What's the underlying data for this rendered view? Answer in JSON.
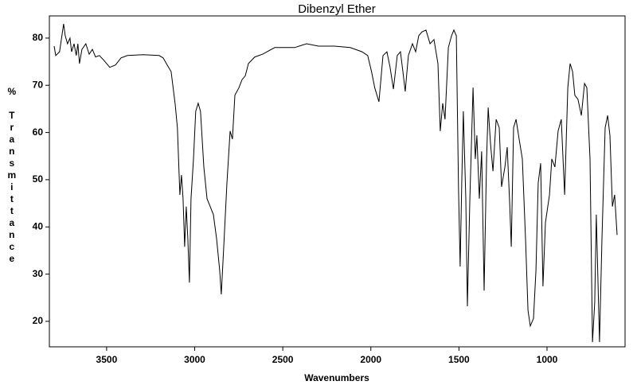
{
  "chart_data": {
    "type": "line",
    "title": "Dibenzyl Ether",
    "x_label": "Wavenumbers",
    "y_label": "% Transmittance",
    "xlim": [
      3825,
      557
    ],
    "ylim": [
      14.6,
      84.7
    ],
    "xticks": [
      3500,
      3000,
      2500,
      2000,
      1500,
      1000
    ],
    "yticks": [
      20,
      30,
      40,
      50,
      60,
      70,
      80
    ],
    "x": [
      3798,
      3789,
      3767,
      3744,
      3735,
      3722,
      3708,
      3699,
      3685,
      3672,
      3663,
      3654,
      3640,
      3618,
      3599,
      3581,
      3563,
      3541,
      3518,
      3482,
      3450,
      3418,
      3382,
      3292,
      3202,
      3179,
      3156,
      3134,
      3111,
      3098,
      3084,
      3075,
      3066,
      3057,
      3048,
      3039,
      3030,
      3021,
      3007,
      2994,
      2980,
      2967,
      2948,
      2930,
      2912,
      2894,
      2876,
      2858,
      2849,
      2835,
      2817,
      2799,
      2786,
      2772,
      2749,
      2731,
      2713,
      2695,
      2659,
      2614,
      2546,
      2433,
      2365,
      2297,
      2207,
      2117,
      2050,
      2018,
      1996,
      1978,
      1954,
      1931,
      1909,
      1891,
      1872,
      1850,
      1832,
      1818,
      1805,
      1787,
      1764,
      1746,
      1728,
      1710,
      1687,
      1664,
      1642,
      1619,
      1606,
      1592,
      1579,
      1560,
      1542,
      1529,
      1515,
      1502,
      1493,
      1484,
      1475,
      1461,
      1452,
      1438,
      1420,
      1407,
      1398,
      1384,
      1371,
      1357,
      1343,
      1334,
      1321,
      1307,
      1289,
      1271,
      1258,
      1239,
      1226,
      1212,
      1203,
      1190,
      1176,
      1158,
      1140,
      1122,
      1108,
      1095,
      1077,
      1063,
      1050,
      1036,
      1023,
      1009,
      986,
      973,
      955,
      937,
      919,
      900,
      882,
      869,
      855,
      842,
      824,
      805,
      787,
      774,
      756,
      742,
      729,
      720,
      711,
      702,
      688,
      670,
      656,
      643,
      629,
      616,
      602
    ],
    "series": [
      {
        "name": "Dibenzyl Ether",
        "color": "#000000",
        "values": [
          78.3,
          76.3,
          77.1,
          83,
          80.5,
          78.8,
          80,
          77.1,
          78.8,
          76.3,
          78.8,
          74.6,
          77.6,
          78.8,
          76.6,
          77.6,
          76,
          76.3,
          75.4,
          73.8,
          74.3,
          75.8,
          76.3,
          76.5,
          76.3,
          75.8,
          74.3,
          72.9,
          66,
          61,
          46.8,
          51,
          46,
          35.8,
          44.3,
          37.5,
          28.2,
          46,
          54.4,
          64.5,
          66.2,
          64.5,
          52.7,
          46,
          44.3,
          42.6,
          37.5,
          30.8,
          25.7,
          35.8,
          49.3,
          60.3,
          58.6,
          67.9,
          69.5,
          71.2,
          72,
          74.6,
          76,
          76.6,
          78,
          78,
          78.8,
          78.3,
          78.3,
          78,
          77.1,
          76.3,
          72.9,
          69.5,
          66.5,
          76.3,
          77.1,
          73.8,
          69.2,
          76.3,
          77.1,
          72.9,
          68.7,
          76.3,
          78.8,
          77.1,
          80.5,
          81.3,
          81.7,
          78.8,
          79.7,
          74.6,
          60.3,
          66.2,
          62.8,
          78,
          80.5,
          81.7,
          80.5,
          47.6,
          31.6,
          49.3,
          64.5,
          46,
          23.2,
          46,
          69.5,
          54.4,
          59.4,
          46,
          56,
          26.5,
          54.4,
          65.3,
          57.7,
          51.8,
          62.8,
          61,
          48.5,
          52.7,
          56.9,
          45,
          35.8,
          61,
          62.8,
          58.6,
          54.4,
          37.5,
          22.3,
          19,
          20.6,
          30.8,
          49.3,
          53.5,
          27.4,
          40.9,
          46.8,
          54.4,
          52.7,
          60.3,
          62.8,
          46.8,
          69.5,
          74.6,
          72.9,
          67.9,
          67,
          63.6,
          70.4,
          69.5,
          54.4,
          15.6,
          24,
          42.6,
          29.1,
          15.6,
          37.5,
          61,
          63.6,
          59.4,
          44.3,
          46.8,
          38.3
        ]
      }
    ]
  }
}
